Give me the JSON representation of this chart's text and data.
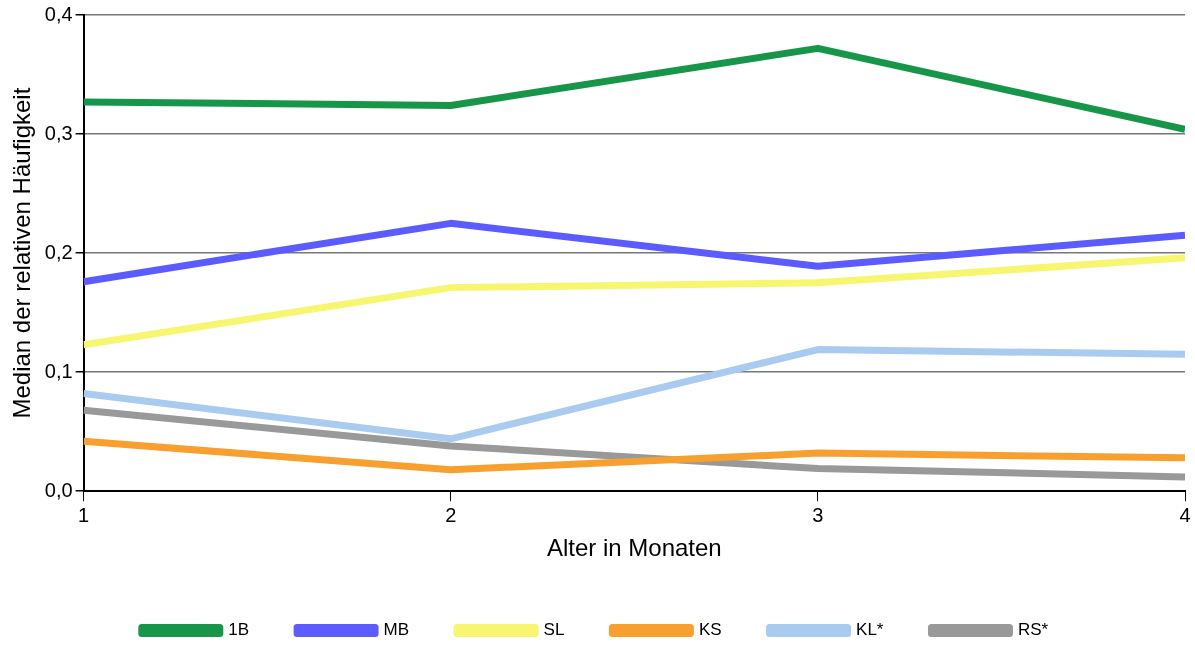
{
  "chart_data": {
    "type": "line",
    "xlabel": "Alter in Monaten",
    "ylabel": "Median der relativen Häufigkeit",
    "x": [
      1,
      2,
      3,
      4
    ],
    "xlim": [
      1,
      4
    ],
    "xticks": [
      1,
      2,
      3,
      4
    ],
    "ylim": [
      0,
      0.4
    ],
    "yticks": [
      {
        "value": 0,
        "label": "0,0"
      },
      {
        "value": 0.1,
        "label": "0,1"
      },
      {
        "value": 0.2,
        "label": "0,2"
      },
      {
        "value": 0.3,
        "label": "0,3"
      },
      {
        "value": 0.4,
        "label": "0,4"
      }
    ],
    "grid": "y",
    "legend": "bottom",
    "marker": "none",
    "line_style": "solid",
    "series": [
      {
        "name": "1B",
        "color": "#17964a",
        "values": [
          0.327,
          0.324,
          0.372,
          0.304
        ]
      },
      {
        "name": "MB",
        "color": "#5b5bff",
        "values": [
          0.176,
          0.225,
          0.189,
          0.215
        ]
      },
      {
        "name": "SL",
        "color": "#f6f670",
        "values": [
          0.123,
          0.171,
          0.175,
          0.196
        ]
      },
      {
        "name": "KS",
        "color": "#f7a030",
        "values": [
          0.042,
          0.018,
          0.032,
          0.028
        ]
      },
      {
        "name": "KL*",
        "color": "#a9cbef",
        "values": [
          0.082,
          0.044,
          0.119,
          0.115
        ]
      },
      {
        "name": "RS*",
        "color": "#999999",
        "values": [
          0.068,
          0.038,
          0.019,
          0.012
        ]
      }
    ]
  }
}
